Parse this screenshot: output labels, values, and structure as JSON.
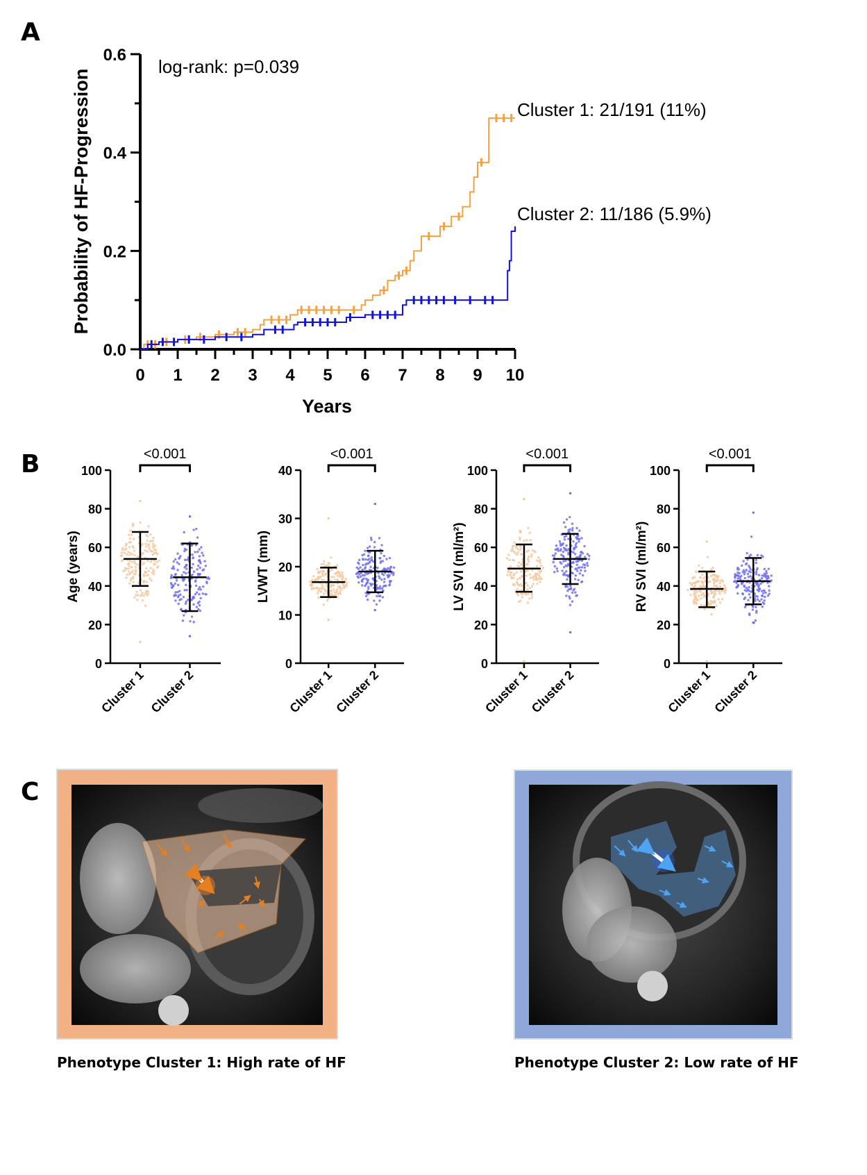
{
  "panels": {
    "A": "A",
    "B": "B",
    "C": "C"
  },
  "colors": {
    "cluster1": "#F5A142",
    "cluster2": "#1010E0",
    "cluster1_dots": "#F6C9A0",
    "cluster2_dots": "#6E6EF0",
    "frame_c1": "#F2B185",
    "frame_c2": "#8FA8D9"
  },
  "chart_data": [
    {
      "type": "line",
      "panel": "A",
      "title": "",
      "xlabel": "Years",
      "ylabel": "Probability of HF-Progression",
      "xlim": [
        0,
        10
      ],
      "ylim": [
        0,
        0.6
      ],
      "xticks": [
        "0",
        "1",
        "2",
        "3",
        "4",
        "5",
        "6",
        "7",
        "8",
        "9",
        "10"
      ],
      "yticks": [
        "0.0",
        "0.2",
        "0.4",
        "0.6"
      ],
      "annotation": "log-rank: p=0.039",
      "series": [
        {
          "name": "Cluster 1: 21/191 (11%)",
          "color_key": "cluster1",
          "step_x": [
            0,
            0.1,
            0.5,
            1.0,
            1.5,
            2.0,
            2.5,
            3.0,
            3.2,
            3.3,
            4.0,
            4.2,
            5.0,
            5.5,
            5.9,
            6.0,
            6.2,
            6.4,
            6.6,
            6.8,
            7.0,
            7.2,
            7.3,
            7.5,
            8.0,
            8.3,
            8.6,
            8.8,
            8.9,
            9.0,
            9.3,
            10.0
          ],
          "step_y": [
            0.0,
            0.01,
            0.015,
            0.02,
            0.025,
            0.03,
            0.035,
            0.04,
            0.05,
            0.06,
            0.07,
            0.08,
            0.08,
            0.08,
            0.09,
            0.1,
            0.11,
            0.12,
            0.14,
            0.15,
            0.16,
            0.18,
            0.2,
            0.23,
            0.25,
            0.27,
            0.29,
            0.32,
            0.35,
            0.38,
            0.47,
            0.47
          ],
          "censor_x": [
            0.2,
            0.4,
            0.7,
            1.2,
            1.6,
            2.1,
            2.6,
            2.8,
            3.5,
            3.7,
            3.9,
            4.3,
            4.5,
            4.7,
            4.9,
            5.1,
            5.3,
            5.7,
            6.5,
            6.9,
            7.1,
            7.7,
            8.1,
            8.5,
            9.1,
            9.5,
            9.7,
            9.9
          ]
        },
        {
          "name": "Cluster 2: 11/186 (5.9%)",
          "color_key": "cluster2",
          "step_x": [
            0,
            0.2,
            0.5,
            1.0,
            2.0,
            3.0,
            3.3,
            4.1,
            4.2,
            5.5,
            6.0,
            7.0,
            7.1,
            9.8,
            9.85,
            9.9,
            10.0
          ],
          "step_y": [
            0.0,
            0.01,
            0.015,
            0.02,
            0.025,
            0.03,
            0.04,
            0.05,
            0.055,
            0.065,
            0.07,
            0.09,
            0.1,
            0.16,
            0.18,
            0.24,
            0.25
          ],
          "censor_x": [
            0.3,
            0.6,
            0.9,
            1.3,
            1.7,
            2.3,
            2.7,
            3.6,
            3.8,
            4.4,
            4.6,
            4.8,
            5.0,
            5.2,
            5.6,
            6.2,
            6.4,
            6.6,
            6.8,
            7.3,
            7.5,
            7.7,
            7.9,
            8.1,
            8.4,
            8.8,
            9.2,
            9.4
          ]
        }
      ]
    },
    {
      "type": "scatter",
      "panel": "B1",
      "title": "",
      "ylabel": "Age  (years)",
      "ylim": [
        0,
        100
      ],
      "yticks": [
        "0",
        "20",
        "40",
        "60",
        "80",
        "100"
      ],
      "categories": [
        "Cluster 1",
        "Cluster 2"
      ],
      "pvalue": "<0.001",
      "series": [
        {
          "category": "Cluster 1",
          "mean": 54,
          "sd_low": 40,
          "sd_high": 68,
          "min": 11,
          "max": 84
        },
        {
          "category": "Cluster 2",
          "mean": 44.5,
          "sd_low": 27,
          "sd_high": 62,
          "min": 14,
          "max": 76
        }
      ]
    },
    {
      "type": "scatter",
      "panel": "B2",
      "title": "",
      "ylabel": "LVWT (mm)",
      "ylim": [
        0,
        40
      ],
      "yticks": [
        "0",
        "10",
        "20",
        "30",
        "40"
      ],
      "categories": [
        "Cluster 1",
        "Cluster 2"
      ],
      "pvalue": "<0.001",
      "series": [
        {
          "category": "Cluster 1",
          "mean": 16.8,
          "sd_low": 13.7,
          "sd_high": 19.8,
          "min": 9,
          "max": 30
        },
        {
          "category": "Cluster 2",
          "mean": 19,
          "sd_low": 14.7,
          "sd_high": 23.3,
          "min": 11,
          "max": 33
        }
      ]
    },
    {
      "type": "scatter",
      "panel": "B3",
      "title": "",
      "ylabel": "LV SVI (ml/m²)",
      "ylim": [
        0,
        100
      ],
      "yticks": [
        "0",
        "20",
        "40",
        "60",
        "80",
        "100"
      ],
      "categories": [
        "Cluster 1",
        "Cluster 2"
      ],
      "pvalue": "<0.001",
      "series": [
        {
          "category": "Cluster 1",
          "mean": 49,
          "sd_low": 37,
          "sd_high": 61.5,
          "min": 1,
          "max": 85
        },
        {
          "category": "Cluster 2",
          "mean": 54,
          "sd_low": 41,
          "sd_high": 67,
          "min": 16,
          "max": 88
        }
      ]
    },
    {
      "type": "scatter",
      "panel": "B4",
      "title": "",
      "ylabel": "RV SVI (ml/m²)",
      "ylim": [
        0,
        100
      ],
      "yticks": [
        "0",
        "20",
        "40",
        "60",
        "80",
        "100"
      ],
      "categories": [
        "Cluster 1",
        "Cluster 2"
      ],
      "pvalue": "<0.001",
      "series": [
        {
          "category": "Cluster 1",
          "mean": 38.5,
          "sd_low": 29,
          "sd_high": 47.5,
          "min": 1,
          "max": 63
        },
        {
          "category": "Cluster 2",
          "mean": 42.5,
          "sd_low": 30.5,
          "sd_high": 54.5,
          "min": 21,
          "max": 78
        }
      ]
    }
  ],
  "panel_c": {
    "left_caption": "Phenotype Cluster 1: High rate of HF",
    "right_caption": "Phenotype Cluster 2: Low rate of HF"
  }
}
